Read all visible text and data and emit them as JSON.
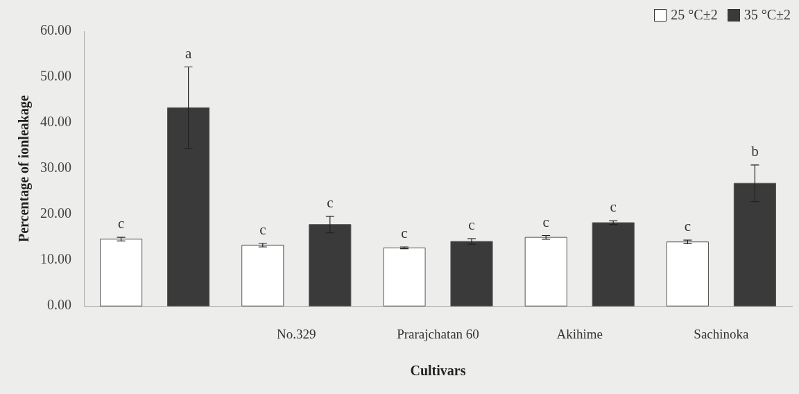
{
  "chart_data": {
    "type": "bar",
    "xlabel": "Cultivars",
    "ylabel": "Percentage of ionleakage",
    "categories": [
      null,
      "No.329",
      "Prarajchatan 60",
      "Akihime",
      "Sachinoka"
    ],
    "series": [
      {
        "name": "25 °C±2",
        "color": "#ffffff",
        "values": [
          14.6,
          13.3,
          12.7,
          15.0,
          14.0
        ],
        "errors": [
          0.4,
          0.4,
          0.2,
          0.4,
          0.4
        ],
        "value_labels": [
          "c",
          "c",
          "c",
          "c",
          "c"
        ]
      },
      {
        "name": "35 °C±2",
        "color": "#3a3a3a",
        "values": [
          43.3,
          17.8,
          14.1,
          18.2,
          26.8
        ],
        "errors": [
          8.9,
          1.8,
          0.6,
          0.4,
          4.0
        ],
        "value_labels": [
          "a",
          "c",
          "c",
          "c",
          "b"
        ]
      }
    ],
    "ylim": [
      0,
      60
    ],
    "yticks": [
      {
        "value": 0,
        "label": "0.00"
      },
      {
        "value": 10,
        "label": "10.00"
      },
      {
        "value": 20,
        "label": "20.00"
      },
      {
        "value": 30,
        "label": "30.00"
      },
      {
        "value": 40,
        "label": "40.00"
      },
      {
        "value": 50,
        "label": "50.00"
      },
      {
        "value": 60,
        "label": "60.00"
      }
    ],
    "grid": false,
    "legend": "top right"
  }
}
